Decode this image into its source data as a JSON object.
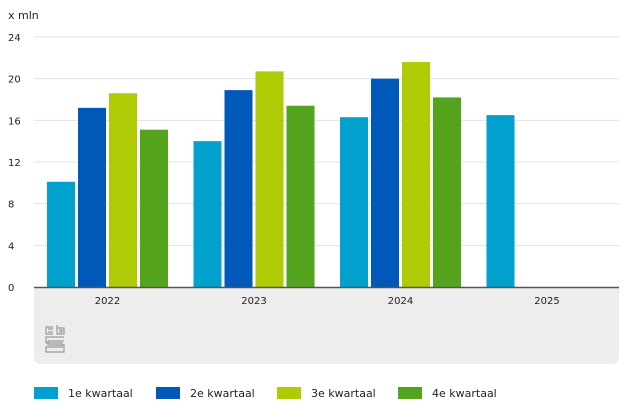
{
  "chart_data": {
    "type": "bar",
    "title": "",
    "unit_label": "x mln",
    "xlabel": "",
    "ylabel": "x mln",
    "categories": [
      "2022",
      "2023",
      "2024",
      "2025"
    ],
    "ylim": [
      0,
      24
    ],
    "yticks": [
      0,
      4,
      8,
      12,
      16,
      20,
      24
    ],
    "ytick_labels": [
      "0",
      "4",
      "8",
      "12",
      "16",
      "20",
      "24"
    ],
    "grid": true,
    "legend_position": "bottom",
    "series": [
      {
        "name": "1e kwartaal",
        "color": "#00a1cd",
        "values": [
          10.1,
          14.0,
          16.3,
          16.5
        ]
      },
      {
        "name": "2e kwartaal",
        "color": "#0058b8",
        "values": [
          17.2,
          18.9,
          20.0,
          null
        ]
      },
      {
        "name": "3e kwartaal",
        "color": "#afcb05",
        "values": [
          18.6,
          20.7,
          21.6,
          null
        ]
      },
      {
        "name": "4e kwartaal",
        "color": "#53a31d",
        "values": [
          15.1,
          17.4,
          18.2,
          null
        ]
      }
    ]
  },
  "logo": {
    "name": "cbs-logo",
    "text": "cbs"
  }
}
